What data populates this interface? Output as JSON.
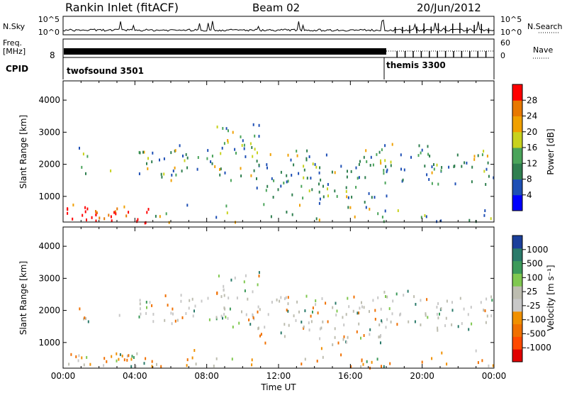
{
  "header": {
    "station": "Rankin Inlet (fitACF)",
    "beam": "Beam 02",
    "date": "20/Jun/2012"
  },
  "noise_panel": {
    "left_label": "N.Sky",
    "right_label": "N.Search",
    "left_ticks": [
      "10^5",
      "10^0"
    ],
    "right_ticks": [
      "10^5",
      "10^0"
    ]
  },
  "freq_panel": {
    "left_label_1": "Freq.",
    "left_label_2": "[MHz]",
    "left_tick": "8",
    "right_label": "Nave",
    "right_ticks": [
      "60",
      "0"
    ]
  },
  "cpid_panel": {
    "label": "CPID",
    "modes": [
      {
        "name": "twofsound 3501",
        "start_hour": 0
      },
      {
        "name": "themis 3300",
        "start_hour": 18
      }
    ]
  },
  "colors": {
    "power_scale": [
      "#0000ff",
      "#1e4fb5",
      "#2f7f4f",
      "#4aa45a",
      "#c8d21e",
      "#f0a000",
      "#e87800",
      "#ff0000"
    ],
    "velocity_scale": [
      "#e00000",
      "#ff4a00",
      "#f07000",
      "#f09000",
      "#c8c8c8",
      "#bdbdb0",
      "#80c850",
      "#3c9a5a",
      "#2a7a6a",
      "#1b3f9b"
    ]
  },
  "chart_data": [
    {
      "type": "heatmap",
      "name": "power",
      "ylabel": "Slant Range [km]",
      "y_ticks": [
        "1000",
        "2000",
        "3000",
        "4000"
      ],
      "ylim": [
        200,
        4600
      ],
      "x_range_hours": [
        0,
        24
      ],
      "colorbar_label": "Power [dB]",
      "colorbar_ticks": [
        "4",
        "8",
        "12",
        "16",
        "20",
        "24",
        "28"
      ],
      "colorbar_range": [
        0,
        32
      ]
    },
    {
      "type": "heatmap",
      "name": "velocity",
      "ylabel": "Slant Range [km]",
      "y_ticks": [
        "1000",
        "2000",
        "3000",
        "4000"
      ],
      "ylim": [
        200,
        4600
      ],
      "x_range_hours": [
        0,
        24
      ],
      "colorbar_label": "Velocity [m s⁻¹]",
      "colorbar_ticks": [
        "1000",
        "500",
        "100",
        "25",
        "-25",
        "-100",
        "-500",
        "-1000"
      ]
    }
  ],
  "x_axis": {
    "label": "Time UT",
    "ticks": [
      "00:00",
      "04:00",
      "08:00",
      "12:00",
      "16:00",
      "20:00",
      "00:00"
    ]
  }
}
